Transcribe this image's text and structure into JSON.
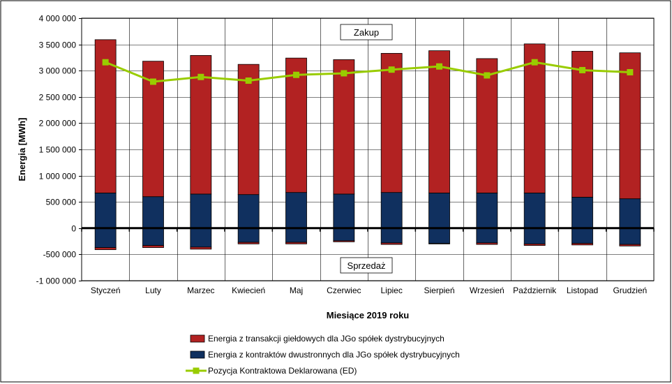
{
  "chart_data": {
    "type": "bar",
    "xlabel": "Miesiące 2019  roku",
    "ylabel": "Energia  [MWh]",
    "ylim": [
      -1000000,
      4000000
    ],
    "yticks": [
      4000000,
      3500000,
      3000000,
      2500000,
      2000000,
      1500000,
      1000000,
      500000,
      0,
      -500000,
      -1000000
    ],
    "ytick_labels": [
      "4 000 000",
      "3 500 000",
      "3 000 000",
      "2 500 000",
      "2 000 000",
      "1 500 000",
      "1 000 000",
      "500 000",
      "0",
      "-500 000",
      "-1 000 000"
    ],
    "categories": [
      "Styczeń",
      "Luty",
      "Marzec",
      "Kwiecień",
      "Maj",
      "Czerwiec",
      "Lipiec",
      "Sierpień",
      "Wrzesień",
      "Październik",
      "Listopad",
      "Grudzień"
    ],
    "series": [
      {
        "name": "Energia z transakcji giełdowych dla JGo spółek dystrybucyjnych",
        "color": "#b22222",
        "kind": "stacked-bar",
        "values_positive": [
          2920000,
          2580000,
          2640000,
          2480000,
          2560000,
          2560000,
          2650000,
          2710000,
          2560000,
          2840000,
          2780000,
          2780000
        ],
        "values_negative": [
          -40000,
          -40000,
          -40000,
          -30000,
          -30000,
          -20000,
          -30000,
          -10000,
          -30000,
          -30000,
          -30000,
          -30000
        ]
      },
      {
        "name": "Energia z kontraktów dwustronnych dla JGo spółek dystrybucyjnych",
        "color": "#10305f",
        "kind": "stacked-bar",
        "values_positive": [
          670000,
          600000,
          650000,
          640000,
          680000,
          650000,
          680000,
          670000,
          670000,
          670000,
          590000,
          560000
        ],
        "values_negative": [
          -370000,
          -330000,
          -360000,
          -270000,
          -270000,
          -240000,
          -280000,
          -290000,
          -280000,
          -300000,
          -290000,
          -310000
        ]
      },
      {
        "name": "Pozycja Kontraktowa Deklarowana (ED)",
        "color": "#99cc00",
        "kind": "line",
        "values": [
          3160000,
          2790000,
          2880000,
          2810000,
          2920000,
          2950000,
          3020000,
          3080000,
          2910000,
          3160000,
          3010000,
          2970000
        ]
      }
    ],
    "annotations": [
      "Zakup",
      "Sprzedaż"
    ],
    "grid": true,
    "legend_position": "bottom"
  }
}
